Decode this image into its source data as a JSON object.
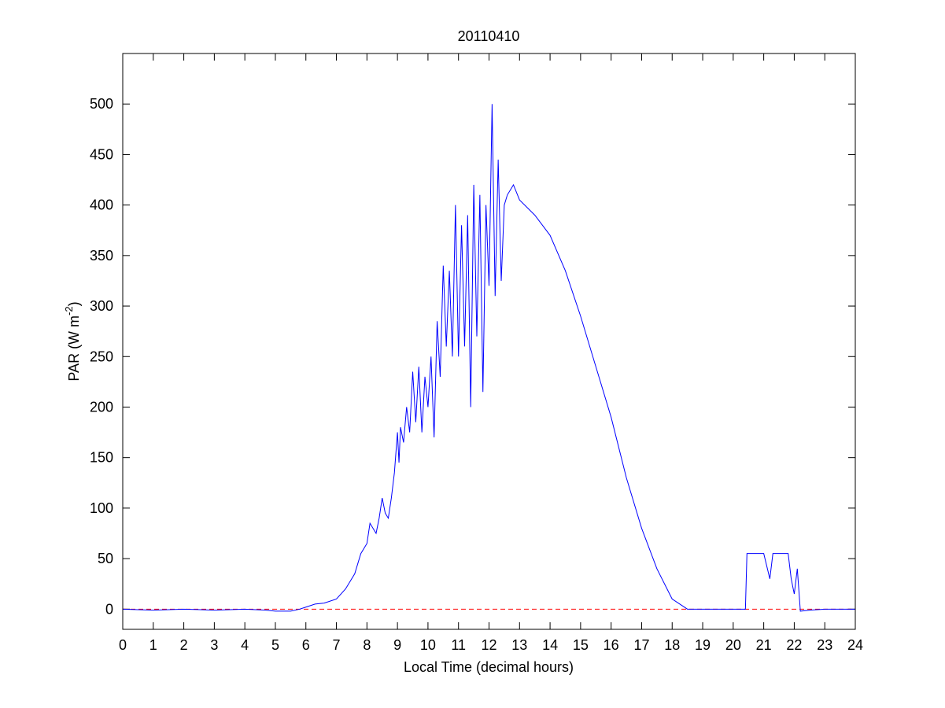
{
  "chart_data": {
    "type": "line",
    "title": "20110410",
    "xlabel": "Local Time (decimal hours)",
    "ylabel": "PAR (W m",
    "ylabel_sup": "-2",
    "ylabel_end": ")",
    "x": [
      0,
      1,
      2,
      3,
      4,
      4.7,
      5,
      5.5,
      5.8,
      6,
      6.3,
      6.6,
      7,
      7.3,
      7.6,
      7.8,
      8,
      8.1,
      8.2,
      8.3,
      8.4,
      8.5,
      8.6,
      8.7,
      8.8,
      8.9,
      9.0,
      9.05,
      9.1,
      9.2,
      9.3,
      9.4,
      9.5,
      9.6,
      9.7,
      9.8,
      9.9,
      10.0,
      10.1,
      10.2,
      10.3,
      10.4,
      10.5,
      10.6,
      10.7,
      10.8,
      10.9,
      11.0,
      11.1,
      11.2,
      11.3,
      11.4,
      11.5,
      11.6,
      11.7,
      11.8,
      11.9,
      12.0,
      12.1,
      12.2,
      12.3,
      12.4,
      12.5,
      12.6,
      12.8,
      13,
      13.5,
      14,
      14.5,
      15,
      15.5,
      16,
      16.5,
      17,
      17.5,
      18,
      18.5,
      19,
      20,
      20.4,
      20.45,
      20.7,
      21,
      21.2,
      21.3,
      21.8,
      21.9,
      22,
      22.1,
      22.2,
      22.5,
      23,
      24
    ],
    "series": [
      {
        "color": "#0000ff",
        "values": [
          0,
          -1,
          0,
          -1,
          0,
          -1,
          -2,
          -2,
          0,
          2,
          5,
          6,
          10,
          20,
          35,
          55,
          65,
          85,
          80,
          75,
          90,
          110,
          95,
          90,
          110,
          135,
          175,
          145,
          180,
          165,
          200,
          175,
          235,
          185,
          240,
          175,
          230,
          200,
          250,
          170,
          285,
          230,
          340,
          260,
          335,
          250,
          400,
          250,
          380,
          260,
          390,
          200,
          420,
          270,
          410,
          215,
          400,
          320,
          500,
          310,
          445,
          325,
          400,
          410,
          420,
          405,
          390,
          370,
          335,
          290,
          240,
          190,
          130,
          80,
          40,
          10,
          0,
          0,
          0,
          0,
          55,
          55,
          55,
          30,
          55,
          55,
          30,
          15,
          40,
          -2,
          -1,
          0,
          0
        ]
      }
    ],
    "reference_line": {
      "value": 0,
      "color": "#ff0000",
      "style": "dashed"
    },
    "xlim": [
      0,
      24
    ],
    "xticks": [
      0,
      1,
      2,
      3,
      4,
      5,
      6,
      7,
      8,
      9,
      10,
      11,
      12,
      13,
      14,
      15,
      16,
      17,
      18,
      19,
      20,
      21,
      22,
      23,
      24
    ],
    "ylim": [
      -20,
      550
    ],
    "yticks": [
      0,
      50,
      100,
      150,
      200,
      250,
      300,
      350,
      400,
      450,
      500
    ]
  }
}
